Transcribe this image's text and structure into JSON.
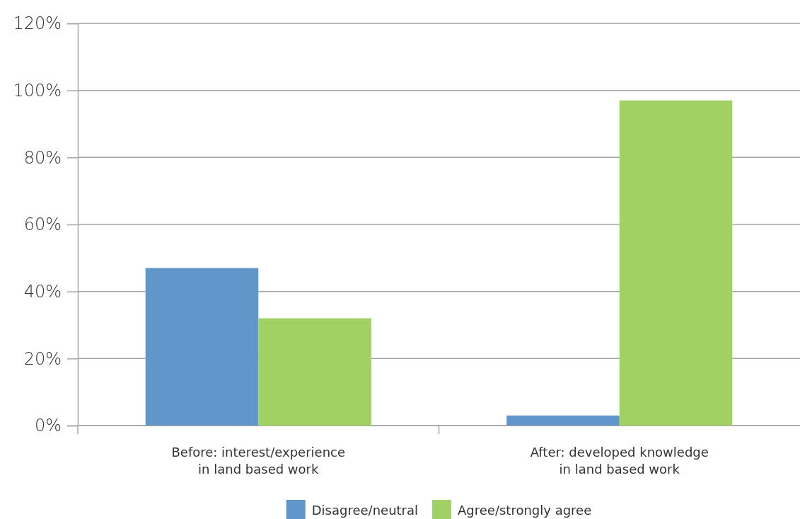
{
  "chart_data": {
    "type": "bar",
    "categories": [
      "Before: interest/experience\nin land based work",
      "After: developed knowledge\nin land based work"
    ],
    "series": [
      {
        "name": "Disagree/neutral",
        "color": "#6096c9",
        "values": [
          47,
          3
        ]
      },
      {
        "name": "Agree/strongly agree",
        "color": "#a1d163",
        "values": [
          32,
          97
        ]
      }
    ],
    "ylim": [
      0,
      120
    ],
    "yticks": [
      {
        "value": 0,
        "label": "0%"
      },
      {
        "value": 20,
        "label": "20%"
      },
      {
        "value": 40,
        "label": "40%"
      },
      {
        "value": 60,
        "label": "60%"
      },
      {
        "value": 80,
        "label": "80%"
      },
      {
        "value": 100,
        "label": "100%"
      },
      {
        "value": 120,
        "label": "120%"
      }
    ],
    "grid": "y",
    "legend": "bottom"
  }
}
